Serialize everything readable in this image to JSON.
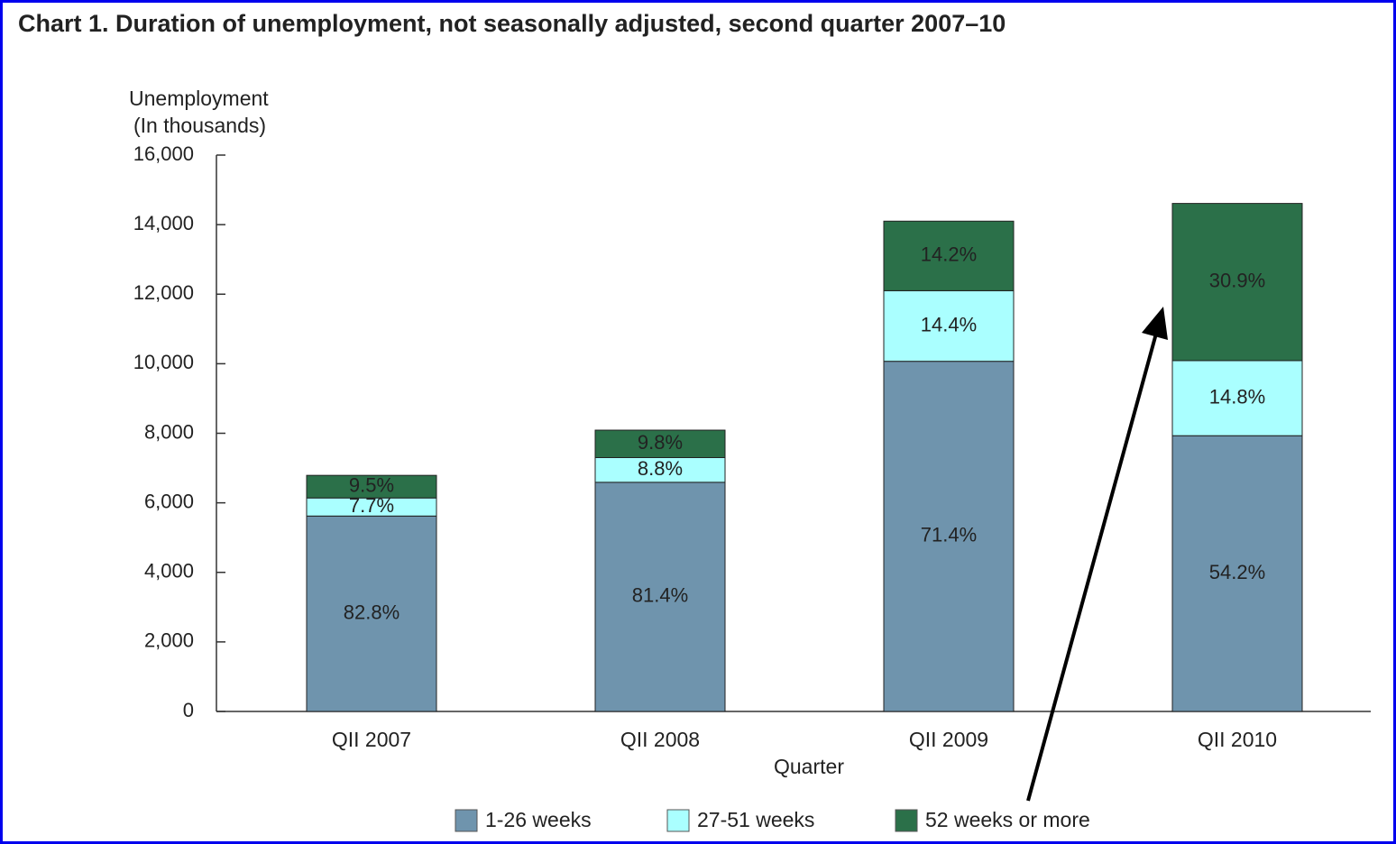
{
  "chart_data": {
    "type": "stacked_bar",
    "title": "Chart 1. Duration of unemployment, not seasonally adjusted, second quarter 2007–10",
    "y_label_lines": [
      "Unemployment",
      "(In thousands)"
    ],
    "x_label": "Quarter",
    "categories": [
      "QII 2007",
      "QII 2008",
      "QII 2009",
      "QII 2010"
    ],
    "series": [
      {
        "name": "1-26 weeks",
        "color": "#6f94ad",
        "values": [
          5620,
          6590,
          10070,
          7930
        ],
        "shares": [
          82.8,
          81.4,
          71.4,
          54.2
        ],
        "share_labels": [
          "82.8%",
          "81.4%",
          "71.4%",
          "54.2%"
        ],
        "label_color": "#222222"
      },
      {
        "name": "27-51 weeks",
        "color": "#aaffff",
        "values": [
          520,
          710,
          2030,
          2160
        ],
        "shares": [
          7.7,
          8.8,
          14.4,
          14.8
        ],
        "share_labels": [
          "7.7%",
          "8.8%",
          "14.4%",
          "14.8%"
        ],
        "label_color": "#222222"
      },
      {
        "name": "52 weeks or more",
        "color": "#2b7049",
        "values": [
          650,
          790,
          2000,
          4520
        ],
        "shares": [
          9.5,
          9.8,
          14.2,
          30.9
        ],
        "share_labels": [
          "9.5%",
          "9.8%",
          "14.2%",
          "30.9%"
        ],
        "label_color": "#ffffff"
      }
    ],
    "ylim": [
      0,
      16000
    ],
    "yticks": [
      {
        "value": 0,
        "label": "0"
      },
      {
        "value": 2000,
        "label": "2,000"
      },
      {
        "value": 4000,
        "label": "4,000"
      },
      {
        "value": 6000,
        "label": "6,000"
      },
      {
        "value": 8000,
        "label": "8,000"
      },
      {
        "value": 10000,
        "label": "10,000"
      },
      {
        "value": 12000,
        "label": "12,000"
      },
      {
        "value": 14000,
        "label": "14,000"
      },
      {
        "value": 16000,
        "label": "16,000"
      }
    ],
    "legend": "bottom"
  }
}
